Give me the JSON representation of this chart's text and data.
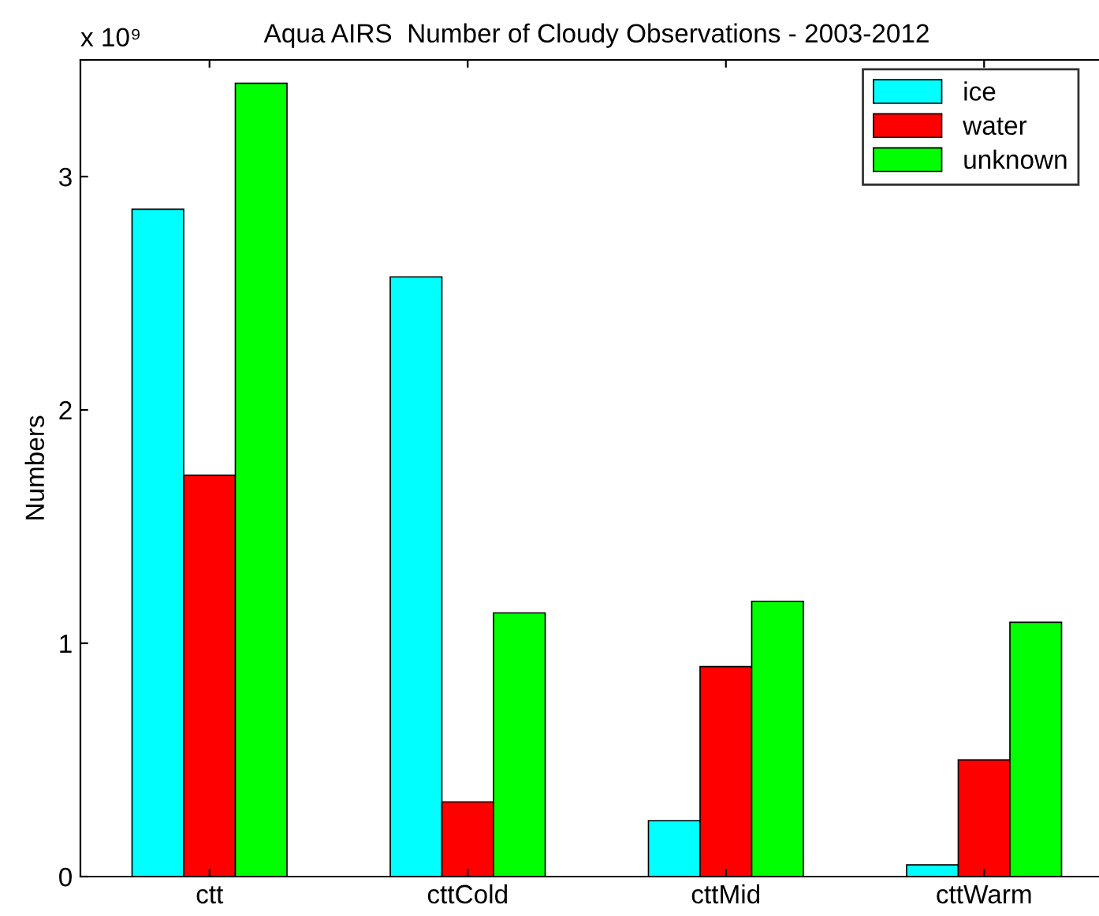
{
  "chart_data": {
    "type": "bar",
    "title": "Aqua AIRS  Number of Cloudy Observations - 2003-2012",
    "ylabel": "Numbers",
    "annotations": [
      "x 10⁹"
    ],
    "categories": [
      "ctt",
      "cttCold",
      "cttMid",
      "cttWarm"
    ],
    "series": [
      {
        "name": "ice",
        "color": "#00ffff",
        "values": [
          2.86,
          2.57,
          0.24,
          0.05
        ]
      },
      {
        "name": "water",
        "color": "#ff0000",
        "values": [
          1.72,
          0.32,
          0.9,
          0.5
        ]
      },
      {
        "name": "unknown",
        "color": "#00ff00",
        "values": [
          3.4,
          1.13,
          1.18,
          1.09
        ]
      }
    ],
    "ylim": [
      0,
      3.5
    ],
    "yticks": [
      0,
      1,
      2,
      3
    ],
    "grid": false,
    "legend": "top right"
  }
}
